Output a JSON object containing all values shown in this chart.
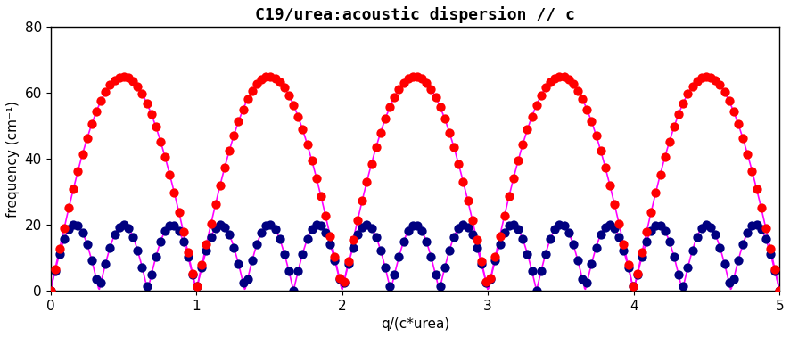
{
  "title": "C19/urea:acoustic dispersion // c",
  "xlabel": "q/(c*urea)",
  "ylabel": "frequency (cm⁻¹)",
  "xlim": [
    0,
    5
  ],
  "ylim": [
    0,
    80
  ],
  "yticks": [
    0,
    20,
    40,
    60,
    80
  ],
  "xticks": [
    0,
    1,
    2,
    3,
    4,
    5
  ],
  "red_amplitude": 65.0,
  "blue_amplitude": 20.0,
  "N_red": 1.0,
  "N_blue": 3.0,
  "n_points": 1000,
  "n_scatter": 160,
  "q_start": 0.0,
  "q_end": 5.0,
  "red_color": "#ff0000",
  "blue_color": "#000080",
  "line_color": "#ff00ff",
  "bg_color": "#ffffff",
  "title_fontsize": 13,
  "axis_fontsize": 11,
  "tick_fontsize": 11,
  "marker_size": 55,
  "line_width": 1.2,
  "figsize": [
    8.86,
    3.78
  ],
  "dpi": 100
}
